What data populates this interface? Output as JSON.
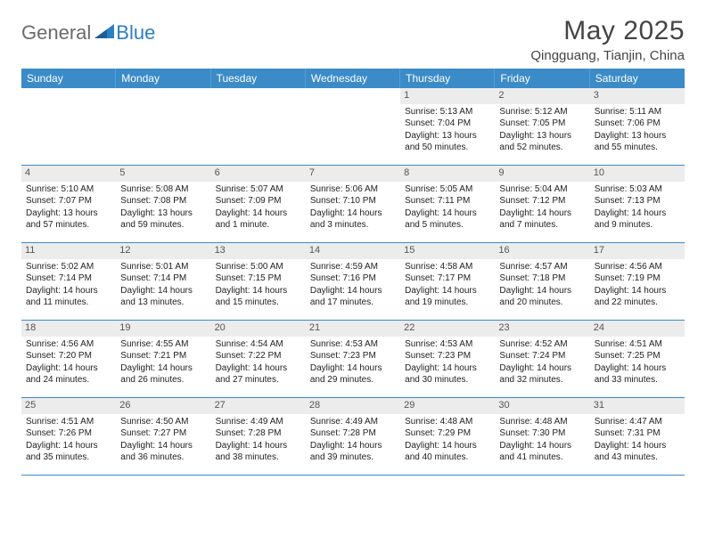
{
  "logo": {
    "general": "General",
    "blue": "Blue"
  },
  "title": "May 2025",
  "location": "Qingguang, Tianjin, China",
  "colors": {
    "header_bg": "#3b8bc9",
    "header_text": "#ffffff",
    "daynum_bg": "#ececec",
    "rule": "#3b8bc9",
    "logo_gray": "#6b6b6b",
    "logo_blue": "#2b7fc3"
  },
  "weekdays": [
    "Sunday",
    "Monday",
    "Tuesday",
    "Wednesday",
    "Thursday",
    "Friday",
    "Saturday"
  ],
  "weeks": [
    [
      {
        "empty": true
      },
      {
        "empty": true
      },
      {
        "empty": true
      },
      {
        "empty": true
      },
      {
        "num": "1",
        "sunrise": "Sunrise: 5:13 AM",
        "sunset": "Sunset: 7:04 PM",
        "day1": "Daylight: 13 hours",
        "day2": "and 50 minutes."
      },
      {
        "num": "2",
        "sunrise": "Sunrise: 5:12 AM",
        "sunset": "Sunset: 7:05 PM",
        "day1": "Daylight: 13 hours",
        "day2": "and 52 minutes."
      },
      {
        "num": "3",
        "sunrise": "Sunrise: 5:11 AM",
        "sunset": "Sunset: 7:06 PM",
        "day1": "Daylight: 13 hours",
        "day2": "and 55 minutes."
      }
    ],
    [
      {
        "num": "4",
        "sunrise": "Sunrise: 5:10 AM",
        "sunset": "Sunset: 7:07 PM",
        "day1": "Daylight: 13 hours",
        "day2": "and 57 minutes."
      },
      {
        "num": "5",
        "sunrise": "Sunrise: 5:08 AM",
        "sunset": "Sunset: 7:08 PM",
        "day1": "Daylight: 13 hours",
        "day2": "and 59 minutes."
      },
      {
        "num": "6",
        "sunrise": "Sunrise: 5:07 AM",
        "sunset": "Sunset: 7:09 PM",
        "day1": "Daylight: 14 hours",
        "day2": "and 1 minute."
      },
      {
        "num": "7",
        "sunrise": "Sunrise: 5:06 AM",
        "sunset": "Sunset: 7:10 PM",
        "day1": "Daylight: 14 hours",
        "day2": "and 3 minutes."
      },
      {
        "num": "8",
        "sunrise": "Sunrise: 5:05 AM",
        "sunset": "Sunset: 7:11 PM",
        "day1": "Daylight: 14 hours",
        "day2": "and 5 minutes."
      },
      {
        "num": "9",
        "sunrise": "Sunrise: 5:04 AM",
        "sunset": "Sunset: 7:12 PM",
        "day1": "Daylight: 14 hours",
        "day2": "and 7 minutes."
      },
      {
        "num": "10",
        "sunrise": "Sunrise: 5:03 AM",
        "sunset": "Sunset: 7:13 PM",
        "day1": "Daylight: 14 hours",
        "day2": "and 9 minutes."
      }
    ],
    [
      {
        "num": "11",
        "sunrise": "Sunrise: 5:02 AM",
        "sunset": "Sunset: 7:14 PM",
        "day1": "Daylight: 14 hours",
        "day2": "and 11 minutes."
      },
      {
        "num": "12",
        "sunrise": "Sunrise: 5:01 AM",
        "sunset": "Sunset: 7:14 PM",
        "day1": "Daylight: 14 hours",
        "day2": "and 13 minutes."
      },
      {
        "num": "13",
        "sunrise": "Sunrise: 5:00 AM",
        "sunset": "Sunset: 7:15 PM",
        "day1": "Daylight: 14 hours",
        "day2": "and 15 minutes."
      },
      {
        "num": "14",
        "sunrise": "Sunrise: 4:59 AM",
        "sunset": "Sunset: 7:16 PM",
        "day1": "Daylight: 14 hours",
        "day2": "and 17 minutes."
      },
      {
        "num": "15",
        "sunrise": "Sunrise: 4:58 AM",
        "sunset": "Sunset: 7:17 PM",
        "day1": "Daylight: 14 hours",
        "day2": "and 19 minutes."
      },
      {
        "num": "16",
        "sunrise": "Sunrise: 4:57 AM",
        "sunset": "Sunset: 7:18 PM",
        "day1": "Daylight: 14 hours",
        "day2": "and 20 minutes."
      },
      {
        "num": "17",
        "sunrise": "Sunrise: 4:56 AM",
        "sunset": "Sunset: 7:19 PM",
        "day1": "Daylight: 14 hours",
        "day2": "and 22 minutes."
      }
    ],
    [
      {
        "num": "18",
        "sunrise": "Sunrise: 4:56 AM",
        "sunset": "Sunset: 7:20 PM",
        "day1": "Daylight: 14 hours",
        "day2": "and 24 minutes."
      },
      {
        "num": "19",
        "sunrise": "Sunrise: 4:55 AM",
        "sunset": "Sunset: 7:21 PM",
        "day1": "Daylight: 14 hours",
        "day2": "and 26 minutes."
      },
      {
        "num": "20",
        "sunrise": "Sunrise: 4:54 AM",
        "sunset": "Sunset: 7:22 PM",
        "day1": "Daylight: 14 hours",
        "day2": "and 27 minutes."
      },
      {
        "num": "21",
        "sunrise": "Sunrise: 4:53 AM",
        "sunset": "Sunset: 7:23 PM",
        "day1": "Daylight: 14 hours",
        "day2": "and 29 minutes."
      },
      {
        "num": "22",
        "sunrise": "Sunrise: 4:53 AM",
        "sunset": "Sunset: 7:23 PM",
        "day1": "Daylight: 14 hours",
        "day2": "and 30 minutes."
      },
      {
        "num": "23",
        "sunrise": "Sunrise: 4:52 AM",
        "sunset": "Sunset: 7:24 PM",
        "day1": "Daylight: 14 hours",
        "day2": "and 32 minutes."
      },
      {
        "num": "24",
        "sunrise": "Sunrise: 4:51 AM",
        "sunset": "Sunset: 7:25 PM",
        "day1": "Daylight: 14 hours",
        "day2": "and 33 minutes."
      }
    ],
    [
      {
        "num": "25",
        "sunrise": "Sunrise: 4:51 AM",
        "sunset": "Sunset: 7:26 PM",
        "day1": "Daylight: 14 hours",
        "day2": "and 35 minutes."
      },
      {
        "num": "26",
        "sunrise": "Sunrise: 4:50 AM",
        "sunset": "Sunset: 7:27 PM",
        "day1": "Daylight: 14 hours",
        "day2": "and 36 minutes."
      },
      {
        "num": "27",
        "sunrise": "Sunrise: 4:49 AM",
        "sunset": "Sunset: 7:28 PM",
        "day1": "Daylight: 14 hours",
        "day2": "and 38 minutes."
      },
      {
        "num": "28",
        "sunrise": "Sunrise: 4:49 AM",
        "sunset": "Sunset: 7:28 PM",
        "day1": "Daylight: 14 hours",
        "day2": "and 39 minutes."
      },
      {
        "num": "29",
        "sunrise": "Sunrise: 4:48 AM",
        "sunset": "Sunset: 7:29 PM",
        "day1": "Daylight: 14 hours",
        "day2": "and 40 minutes."
      },
      {
        "num": "30",
        "sunrise": "Sunrise: 4:48 AM",
        "sunset": "Sunset: 7:30 PM",
        "day1": "Daylight: 14 hours",
        "day2": "and 41 minutes."
      },
      {
        "num": "31",
        "sunrise": "Sunrise: 4:47 AM",
        "sunset": "Sunset: 7:31 PM",
        "day1": "Daylight: 14 hours",
        "day2": "and 43 minutes."
      }
    ]
  ]
}
